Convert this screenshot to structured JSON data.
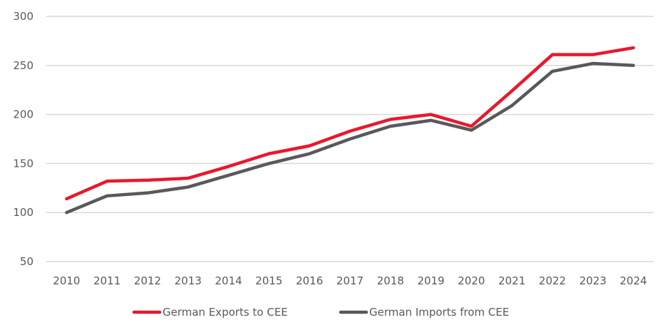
{
  "chart_data": {
    "type": "line",
    "title": "",
    "xlabel": "",
    "ylabel": "",
    "categories": [
      "2010",
      "2011",
      "2012",
      "2013",
      "2014",
      "2015",
      "2016",
      "2017",
      "2018",
      "2019",
      "2020",
      "2021",
      "2022",
      "2023",
      "2024"
    ],
    "ylim": [
      50,
      300
    ],
    "yticks": [
      50,
      100,
      150,
      200,
      250,
      300
    ],
    "grid": true,
    "legend_position": "bottom",
    "series": [
      {
        "name": "German Exports to CEE",
        "color": "#e8192c",
        "values": [
          114,
          132,
          133,
          135,
          147,
          160,
          168,
          183,
          195,
          200,
          188,
          224,
          261,
          261,
          268
        ]
      },
      {
        "name": "German Imports from CEE",
        "color": "#58595b",
        "values": [
          100,
          117,
          120,
          126,
          138,
          150,
          160,
          175,
          188,
          194,
          184,
          209,
          244,
          252,
          250
        ]
      }
    ]
  }
}
